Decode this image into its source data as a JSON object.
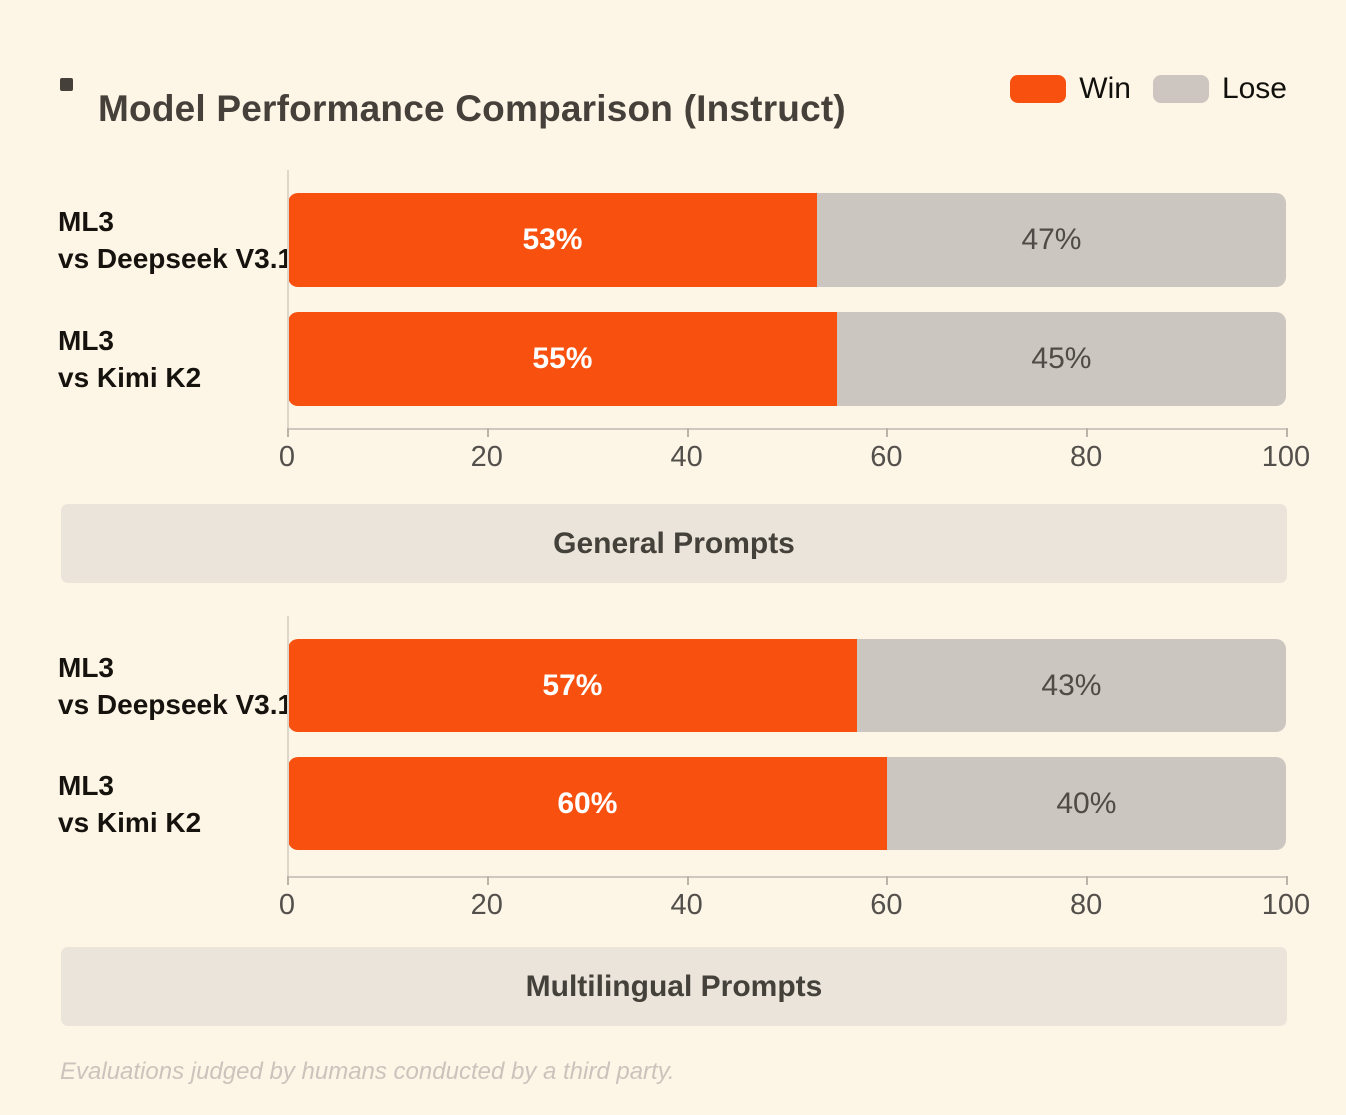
{
  "page": {
    "background_color": "#FDF5E6",
    "accent_color": "#F7500F"
  },
  "header": {
    "title": "Model Performance Comparison (Instruct)"
  },
  "legend": {
    "items": [
      {
        "label": "Win",
        "color": "#F7500F"
      },
      {
        "label": "Lose",
        "color": "#CCC5C0"
      }
    ]
  },
  "chart_data": [
    {
      "type": "bar",
      "orientation": "horizontal",
      "stacked": true,
      "section_label": "General Prompts",
      "categories": [
        "ML3\nvs Deepseek V3.1",
        "ML3\nvs Kimi K2"
      ],
      "series": [
        {
          "name": "Win",
          "color": "#F7500F",
          "values": [
            53,
            55
          ]
        },
        {
          "name": "Lose",
          "color": "#CCC6C1",
          "values": [
            47,
            45
          ]
        }
      ],
      "value_suffix": "%",
      "xlim": [
        0,
        100
      ],
      "xticks": [
        0,
        20,
        40,
        60,
        80,
        100
      ],
      "grid": false,
      "legend_position": "top-right"
    },
    {
      "type": "bar",
      "orientation": "horizontal",
      "stacked": true,
      "section_label": "Multilingual Prompts",
      "categories": [
        "ML3\nvs Deepseek V3.1",
        "ML3\nvs Kimi K2"
      ],
      "series": [
        {
          "name": "Win",
          "color": "#F7500F",
          "values": [
            57,
            60
          ]
        },
        {
          "name": "Lose",
          "color": "#CCC6C1",
          "values": [
            43,
            40
          ]
        }
      ],
      "value_suffix": "%",
      "xlim": [
        0,
        100
      ],
      "xticks": [
        0,
        20,
        40,
        60,
        80,
        100
      ],
      "grid": false,
      "legend_position": "top-right"
    }
  ],
  "footnote": "Evaluations judged by humans conducted by a third party."
}
